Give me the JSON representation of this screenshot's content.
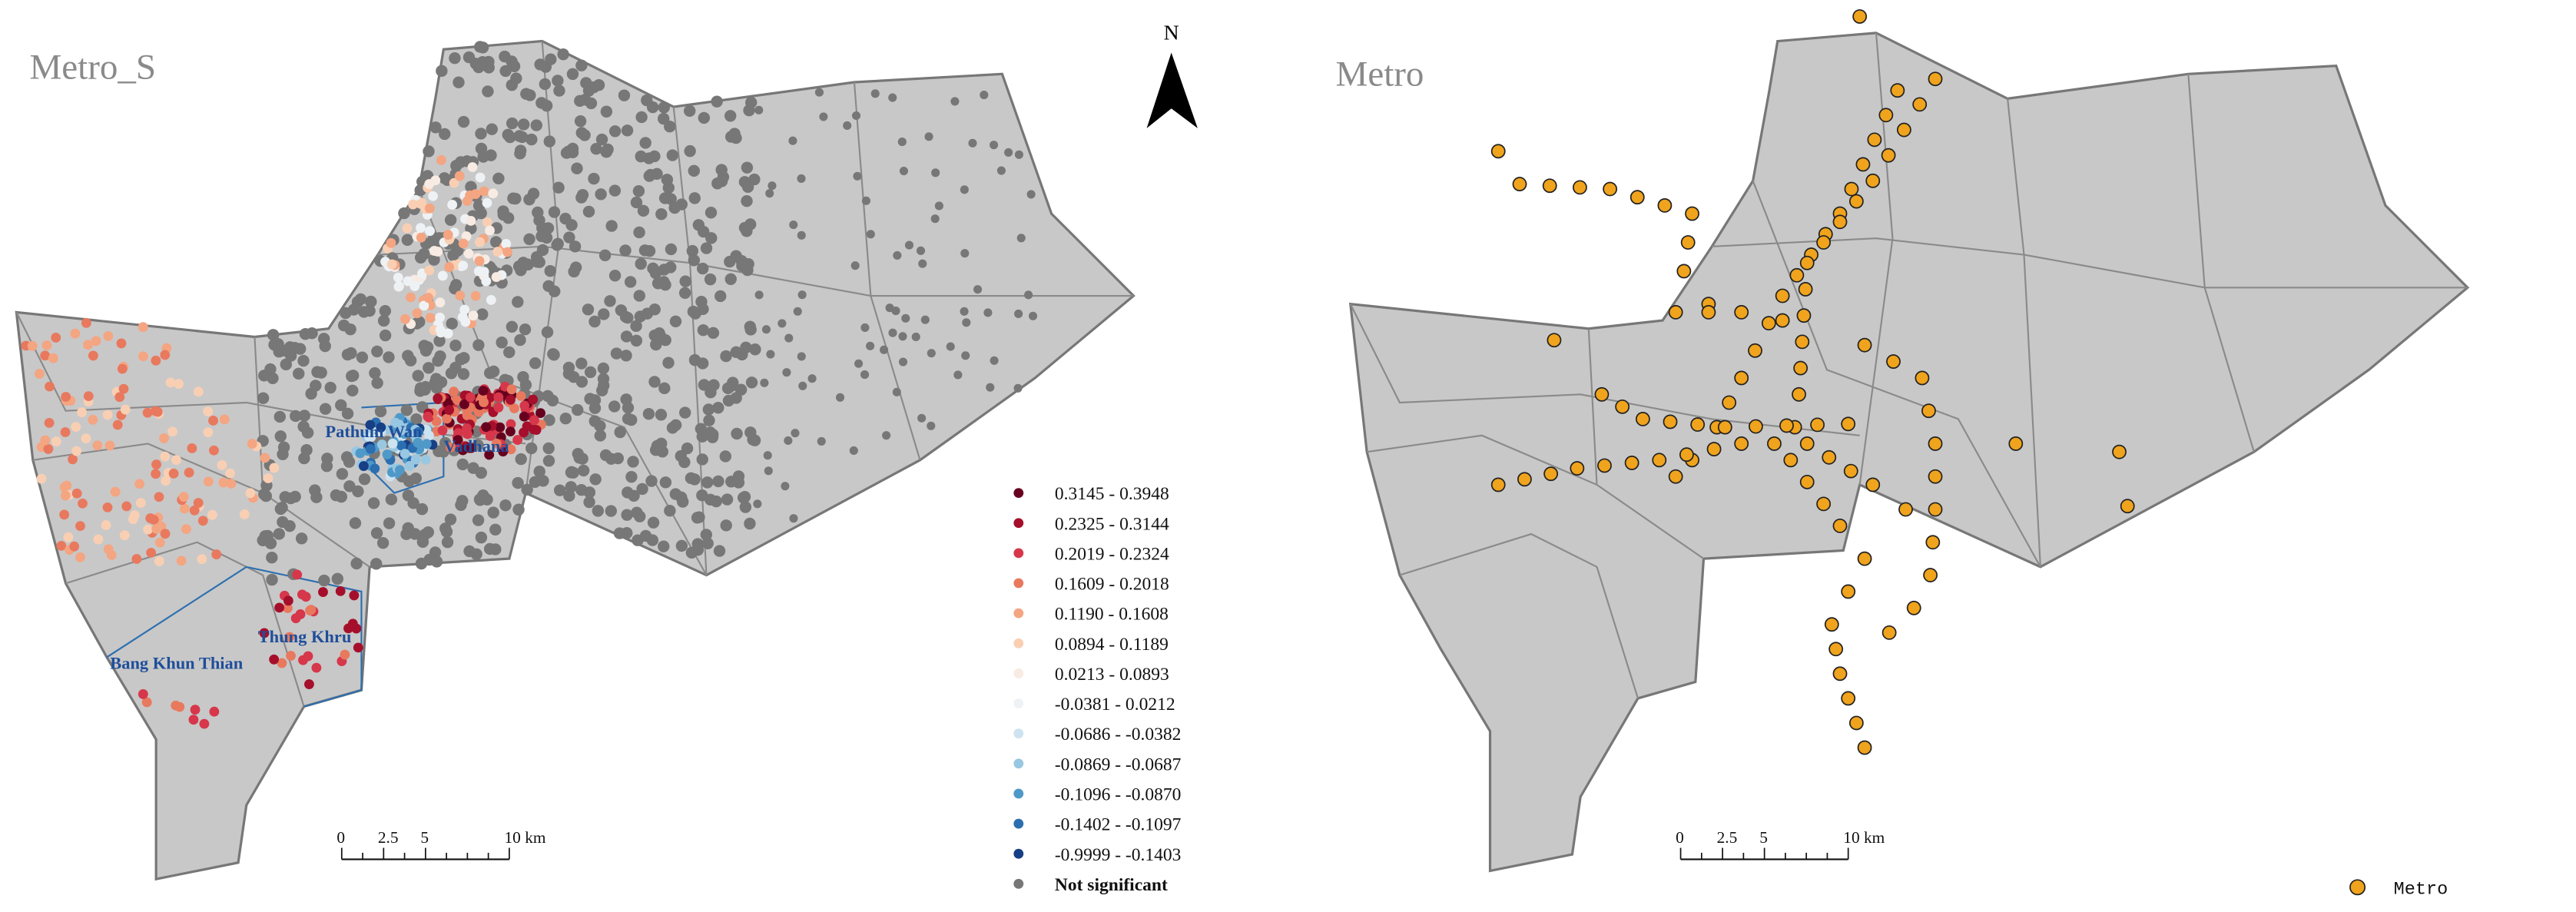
{
  "panels": [
    {
      "title": "Metro_S",
      "north": "N",
      "district_labels": [
        "Pathum Wan",
        "Vadhana",
        "Thung Khru",
        "Bang Khun Thian"
      ],
      "legend": [
        {
          "label": "0.3145 - 0.3948",
          "color": "#67001f"
        },
        {
          "label": "0.2325 - 0.3144",
          "color": "#a50f2b"
        },
        {
          "label": "0.2019 - 0.2324",
          "color": "#d6374a"
        },
        {
          "label": "0.1609 - 0.2018",
          "color": "#e8795e"
        },
        {
          "label": "0.1190 - 0.1608",
          "color": "#f4a582"
        },
        {
          "label": "0.0894 - 0.1189",
          "color": "#f9cfb4"
        },
        {
          "label": "0.0213 - 0.0893",
          "color": "#f7ebe4"
        },
        {
          "label": "-0.0381 - 0.0212",
          "color": "#eef2f5"
        },
        {
          "label": "-0.0686 - -0.0382",
          "color": "#cde3ef"
        },
        {
          "label": "-0.0869 - -0.0687",
          "color": "#99c7e1"
        },
        {
          "label": "-0.1096 - -0.0870",
          "color": "#4f99c9"
        },
        {
          "label": "-0.1402 - -0.1097",
          "color": "#2c6fb0"
        },
        {
          "label": "-0.9999 - -0.1403",
          "color": "#173f85"
        },
        {
          "label": "Not significant",
          "color": "#777777"
        }
      ],
      "scale_bar": [
        "0",
        "2.5",
        "5",
        "10 km"
      ]
    },
    {
      "title": "Metro",
      "legend": [
        {
          "label": "Metro",
          "color": "#f0a31c"
        }
      ],
      "scale_bar": [
        "0",
        "2.5",
        "5",
        "10 km"
      ]
    }
  ]
}
